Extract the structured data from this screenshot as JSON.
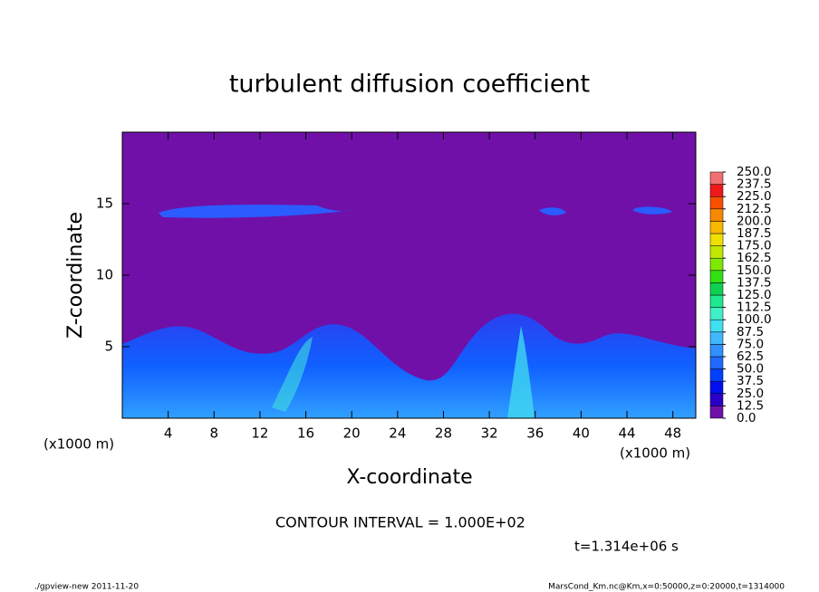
{
  "chart_data": {
    "type": "contour",
    "title": "turbulent diffusion coefficient",
    "xlabel": "X-coordinate",
    "ylabel": "Z-coordinate",
    "x_unit": "(x1000 m)",
    "xlim": [
      0,
      50
    ],
    "ylim": [
      0,
      20
    ],
    "xticks": [
      4,
      8,
      12,
      16,
      20,
      24,
      28,
      32,
      36,
      40,
      44,
      48
    ],
    "yticks": [
      5,
      10,
      15
    ],
    "background_color": "#7010a8",
    "colorbar": {
      "levels": [
        {
          "value": 0,
          "label": "0.0"
        },
        {
          "value": 12.5,
          "label": "12.5"
        },
        {
          "value": 25,
          "label": "25.0"
        },
        {
          "value": 37.5,
          "label": "37.5"
        },
        {
          "value": 50,
          "label": "50.0"
        },
        {
          "value": 62.5,
          "label": "62.5"
        },
        {
          "value": 75,
          "label": "75.0"
        },
        {
          "value": 87.5,
          "label": "87.5"
        },
        {
          "value": 100,
          "label": "100.0"
        },
        {
          "value": 112.5,
          "label": "112.5"
        },
        {
          "value": 125,
          "label": "125.0"
        },
        {
          "value": 137.5,
          "label": "137.5"
        },
        {
          "value": 150,
          "label": "150.0"
        },
        {
          "value": 162.5,
          "label": "162.5"
        },
        {
          "value": 175,
          "label": "175.0"
        },
        {
          "value": 187.5,
          "label": "187.5"
        },
        {
          "value": 200,
          "label": "200.0"
        },
        {
          "value": 212.5,
          "label": "212.5"
        },
        {
          "value": 225,
          "label": "225.0"
        },
        {
          "value": 237.5,
          "label": "237.5"
        },
        {
          "value": 250,
          "label": "250.0"
        }
      ],
      "colors": [
        "#7010a8",
        "#2a00c8",
        "#0010f0",
        "#0040ff",
        "#2068ff",
        "#3090ff",
        "#40b8ff",
        "#40e0f0",
        "#40f0c8",
        "#20e890",
        "#10d050",
        "#30e010",
        "#80e800",
        "#c0e800",
        "#f0e000",
        "#f8b800",
        "#f88800",
        "#f85000",
        "#f01818",
        "#f07070"
      ]
    },
    "annotations": [
      "CONTOUR INTERVAL = 1.000E+02",
      "t=1.314e+06 s",
      "./gpview-new  2011-11-20",
      "MarsCond_Km.nc@Km,x=0:50000,z=0:20000,t=1314000"
    ]
  }
}
